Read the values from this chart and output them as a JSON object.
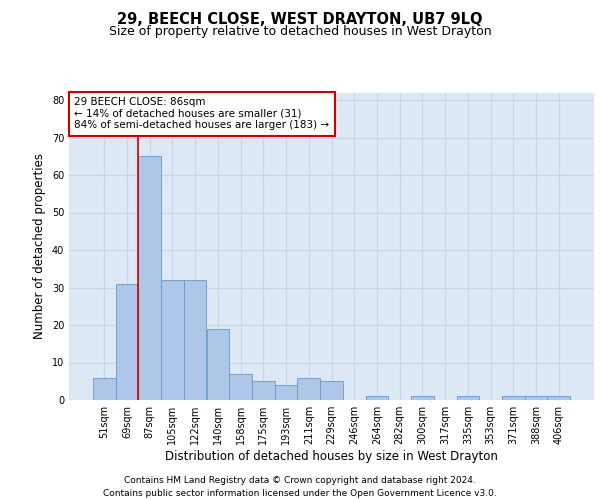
{
  "title": "29, BEECH CLOSE, WEST DRAYTON, UB7 9LQ",
  "subtitle": "Size of property relative to detached houses in West Drayton",
  "xlabel": "Distribution of detached houses by size in West Drayton",
  "ylabel": "Number of detached properties",
  "categories": [
    "51sqm",
    "69sqm",
    "87sqm",
    "105sqm",
    "122sqm",
    "140sqm",
    "158sqm",
    "175sqm",
    "193sqm",
    "211sqm",
    "229sqm",
    "246sqm",
    "264sqm",
    "282sqm",
    "300sqm",
    "317sqm",
    "335sqm",
    "353sqm",
    "371sqm",
    "388sqm",
    "406sqm"
  ],
  "values": [
    6,
    31,
    65,
    32,
    32,
    19,
    7,
    5,
    4,
    6,
    5,
    0,
    1,
    0,
    1,
    0,
    1,
    0,
    1,
    1,
    1
  ],
  "bar_color": "#aec6e8",
  "bar_edge_color": "#6699cc",
  "grid_color": "#c8d4e8",
  "background_color": "#dde8f5",
  "vline_color": "#cc0000",
  "annotation_text": "29 BEECH CLOSE: 86sqm\n← 14% of detached houses are smaller (31)\n84% of semi-detached houses are larger (183) →",
  "annotation_box_edgecolor": "#cc0000",
  "ylim": [
    0,
    82
  ],
  "yticks": [
    0,
    10,
    20,
    30,
    40,
    50,
    60,
    70,
    80
  ],
  "footnote": "Contains HM Land Registry data © Crown copyright and database right 2024.\nContains public sector information licensed under the Open Government Licence v3.0.",
  "title_fontsize": 10.5,
  "subtitle_fontsize": 9,
  "xlabel_fontsize": 8.5,
  "ylabel_fontsize": 8.5,
  "tick_fontsize": 7,
  "footnote_fontsize": 6.5,
  "ann_fontsize": 7.5
}
